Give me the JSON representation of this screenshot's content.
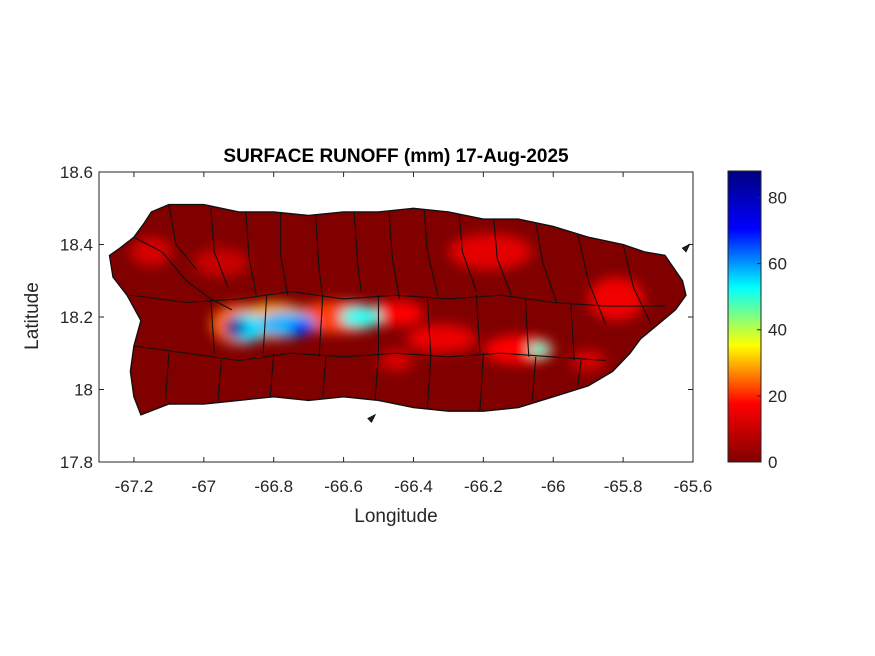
{
  "chart_data": {
    "type": "heatmap",
    "title": "SURFACE RUNOFF (mm) 17-Aug-2025",
    "xlabel": "Longitude",
    "ylabel": "Latitude",
    "xlim": [
      -67.3,
      -65.6
    ],
    "ylim": [
      17.8,
      18.6
    ],
    "x_ticks": [
      "-67.2",
      "-67",
      "-66.8",
      "-66.6",
      "-66.4",
      "-66.2",
      "-66",
      "-65.8",
      "-65.6"
    ],
    "y_ticks": [
      "18.6",
      "18.4",
      "18.2",
      "18",
      "17.8"
    ],
    "x_tick_values": [
      -67.2,
      -67.0,
      -66.8,
      -66.6,
      -66.4,
      -66.2,
      -66.0,
      -65.8,
      -65.6
    ],
    "y_tick_values": [
      18.6,
      18.4,
      18.2,
      18.0,
      17.8
    ],
    "colorbar": {
      "colormap": "jet",
      "range": [
        0,
        88
      ],
      "ticks": [
        "80",
        "60",
        "40",
        "20",
        "0"
      ],
      "tick_values": [
        80,
        60,
        40,
        20,
        0
      ]
    },
    "background_value_color": "#800000",
    "colormap_stops": [
      "#800000",
      "#ff0000",
      "#ffff00",
      "#00ffff",
      "#0000ff",
      "#000080"
    ],
    "island_outline": [
      [
        -67.27,
        18.37
      ],
      [
        -67.24,
        18.39
      ],
      [
        -67.2,
        18.42
      ],
      [
        -67.17,
        18.46
      ],
      [
        -67.15,
        18.49
      ],
      [
        -67.1,
        18.51
      ],
      [
        -67.0,
        18.51
      ],
      [
        -66.9,
        18.49
      ],
      [
        -66.8,
        18.49
      ],
      [
        -66.7,
        18.48
      ],
      [
        -66.6,
        18.49
      ],
      [
        -66.5,
        18.49
      ],
      [
        -66.4,
        18.5
      ],
      [
        -66.3,
        18.49
      ],
      [
        -66.2,
        18.47
      ],
      [
        -66.1,
        18.47
      ],
      [
        -66.0,
        18.45
      ],
      [
        -65.9,
        18.42
      ],
      [
        -65.8,
        18.4
      ],
      [
        -65.74,
        18.38
      ],
      [
        -65.68,
        18.37
      ],
      [
        -65.63,
        18.3
      ],
      [
        -65.62,
        18.26
      ],
      [
        -65.65,
        18.22
      ],
      [
        -65.7,
        18.18
      ],
      [
        -65.75,
        18.14
      ],
      [
        -65.78,
        18.1
      ],
      [
        -65.83,
        18.05
      ],
      [
        -65.9,
        18.01
      ],
      [
        -66.0,
        17.98
      ],
      [
        -66.1,
        17.95
      ],
      [
        -66.2,
        17.94
      ],
      [
        -66.3,
        17.94
      ],
      [
        -66.4,
        17.95
      ],
      [
        -66.5,
        17.97
      ],
      [
        -66.6,
        17.98
      ],
      [
        -66.7,
        17.97
      ],
      [
        -66.8,
        17.98
      ],
      [
        -66.9,
        17.97
      ],
      [
        -67.0,
        17.96
      ],
      [
        -67.1,
        17.96
      ],
      [
        -67.18,
        17.93
      ],
      [
        -67.2,
        17.98
      ],
      [
        -67.21,
        18.05
      ],
      [
        -67.2,
        18.12
      ],
      [
        -67.18,
        18.19
      ],
      [
        -67.22,
        18.26
      ],
      [
        -67.26,
        18.31
      ]
    ],
    "runoff_blobs": [
      {
        "lon": -66.9,
        "lat": 18.18,
        "rx": 0.08,
        "ry": 0.055,
        "value": 25
      },
      {
        "lon": -66.8,
        "lat": 18.19,
        "rx": 0.1,
        "ry": 0.05,
        "value": 30
      },
      {
        "lon": -66.62,
        "lat": 18.2,
        "rx": 0.12,
        "ry": 0.045,
        "value": 22
      },
      {
        "lon": -66.45,
        "lat": 18.21,
        "rx": 0.08,
        "ry": 0.035,
        "value": 18
      },
      {
        "lon": -66.88,
        "lat": 18.17,
        "rx": 0.06,
        "ry": 0.04,
        "value": 55
      },
      {
        "lon": -66.76,
        "lat": 18.18,
        "rx": 0.08,
        "ry": 0.035,
        "value": 58
      },
      {
        "lon": -66.55,
        "lat": 18.2,
        "rx": 0.06,
        "ry": 0.03,
        "value": 52
      },
      {
        "lon": -66.91,
        "lat": 18.17,
        "rx": 0.03,
        "ry": 0.025,
        "value": 85
      },
      {
        "lon": -66.72,
        "lat": 18.17,
        "rx": 0.03,
        "ry": 0.02,
        "value": 70
      },
      {
        "lon": -66.32,
        "lat": 18.14,
        "rx": 0.1,
        "ry": 0.04,
        "value": 15
      },
      {
        "lon": -66.1,
        "lat": 18.11,
        "rx": 0.1,
        "ry": 0.04,
        "value": 18
      },
      {
        "lon": -66.04,
        "lat": 18.11,
        "rx": 0.03,
        "ry": 0.02,
        "value": 50
      },
      {
        "lon": -66.18,
        "lat": 18.38,
        "rx": 0.12,
        "ry": 0.05,
        "value": 14
      },
      {
        "lon": -65.82,
        "lat": 18.25,
        "rx": 0.08,
        "ry": 0.06,
        "value": 16
      },
      {
        "lon": -67.15,
        "lat": 18.38,
        "rx": 0.06,
        "ry": 0.04,
        "value": 12
      },
      {
        "lon": -66.95,
        "lat": 18.35,
        "rx": 0.08,
        "ry": 0.04,
        "value": 10
      },
      {
        "lon": -66.45,
        "lat": 18.08,
        "rx": 0.05,
        "ry": 0.03,
        "value": 12
      },
      {
        "lon": -65.9,
        "lat": 18.08,
        "rx": 0.05,
        "ry": 0.03,
        "value": 12
      }
    ],
    "municipality_lines": [
      [
        [
          -67.2,
          18.42
        ],
        [
          -67.12,
          18.38
        ],
        [
          -67.05,
          18.3
        ],
        [
          -66.98,
          18.25
        ],
        [
          -66.92,
          18.22
        ]
      ],
      [
        [
          -67.1,
          18.51
        ],
        [
          -67.08,
          18.4
        ],
        [
          -67.02,
          18.33
        ]
      ],
      [
        [
          -66.98,
          18.5
        ],
        [
          -66.97,
          18.38
        ],
        [
          -66.93,
          18.28
        ]
      ],
      [
        [
          -66.88,
          18.49
        ],
        [
          -66.87,
          18.36
        ],
        [
          -66.85,
          18.26
        ]
      ],
      [
        [
          -66.78,
          18.49
        ],
        [
          -66.78,
          18.37
        ],
        [
          -66.76,
          18.26
        ]
      ],
      [
        [
          -66.68,
          18.48
        ],
        [
          -66.67,
          18.33
        ],
        [
          -66.66,
          18.25
        ]
      ],
      [
        [
          -66.57,
          18.49
        ],
        [
          -66.56,
          18.35
        ],
        [
          -66.55,
          18.27
        ]
      ],
      [
        [
          -66.47,
          18.49
        ],
        [
          -66.46,
          18.36
        ],
        [
          -66.44,
          18.25
        ]
      ],
      [
        [
          -66.37,
          18.5
        ],
        [
          -66.36,
          18.38
        ],
        [
          -66.33,
          18.26
        ]
      ],
      [
        [
          -66.27,
          18.49
        ],
        [
          -66.26,
          18.38
        ],
        [
          -66.22,
          18.27
        ]
      ],
      [
        [
          -66.17,
          18.47
        ],
        [
          -66.16,
          18.36
        ],
        [
          -66.12,
          18.26
        ]
      ],
      [
        [
          -66.05,
          18.46
        ],
        [
          -66.03,
          18.35
        ],
        [
          -65.99,
          18.24
        ]
      ],
      [
        [
          -65.93,
          18.43
        ],
        [
          -65.9,
          18.3
        ],
        [
          -65.85,
          18.18
        ]
      ],
      [
        [
          -65.8,
          18.4
        ],
        [
          -65.77,
          18.28
        ],
        [
          -65.72,
          18.18
        ]
      ],
      [
        [
          -67.21,
          18.26
        ],
        [
          -67.05,
          18.24
        ],
        [
          -66.9,
          18.25
        ],
        [
          -66.75,
          18.27
        ],
        [
          -66.6,
          18.25
        ],
        [
          -66.45,
          18.26
        ],
        [
          -66.3,
          18.25
        ],
        [
          -66.15,
          18.26
        ],
        [
          -66.0,
          18.24
        ],
        [
          -65.85,
          18.23
        ],
        [
          -65.68,
          18.23
        ]
      ],
      [
        [
          -67.2,
          18.12
        ],
        [
          -67.05,
          18.1
        ],
        [
          -66.9,
          18.08
        ],
        [
          -66.75,
          18.1
        ],
        [
          -66.6,
          18.09
        ],
        [
          -66.45,
          18.1
        ],
        [
          -66.3,
          18.09
        ],
        [
          -66.15,
          18.1
        ],
        [
          -66.0,
          18.09
        ],
        [
          -65.85,
          18.08
        ]
      ],
      [
        [
          -67.1,
          18.1
        ],
        [
          -67.11,
          17.97
        ]
      ],
      [
        [
          -66.95,
          18.08
        ],
        [
          -66.96,
          17.97
        ]
      ],
      [
        [
          -66.8,
          18.1
        ],
        [
          -66.81,
          17.98
        ]
      ],
      [
        [
          -66.65,
          18.09
        ],
        [
          -66.66,
          17.98
        ]
      ],
      [
        [
          -66.5,
          18.1
        ],
        [
          -66.51,
          17.97
        ]
      ],
      [
        [
          -66.35,
          18.09
        ],
        [
          -66.36,
          17.95
        ]
      ],
      [
        [
          -66.2,
          18.1
        ],
        [
          -66.21,
          17.94
        ]
      ],
      [
        [
          -66.05,
          18.09
        ],
        [
          -66.06,
          17.97
        ]
      ],
      [
        [
          -65.92,
          18.08
        ],
        [
          -65.93,
          18.01
        ]
      ],
      [
        [
          -66.98,
          18.25
        ],
        [
          -66.97,
          18.1
        ]
      ],
      [
        [
          -66.82,
          18.26
        ],
        [
          -66.83,
          18.1
        ]
      ],
      [
        [
          -66.66,
          18.25
        ],
        [
          -66.67,
          18.09
        ]
      ],
      [
        [
          -66.5,
          18.26
        ],
        [
          -66.5,
          18.1
        ]
      ],
      [
        [
          -66.36,
          18.25
        ],
        [
          -66.35,
          18.09
        ]
      ],
      [
        [
          -66.22,
          18.26
        ],
        [
          -66.21,
          18.1
        ]
      ],
      [
        [
          -66.08,
          18.25
        ],
        [
          -66.07,
          18.09
        ]
      ],
      [
        [
          -65.95,
          18.24
        ],
        [
          -65.94,
          18.08
        ]
      ]
    ],
    "small_islands": [
      [
        [
          -66.53,
          17.92
        ],
        [
          -66.51,
          17.93
        ],
        [
          -66.52,
          17.91
        ]
      ],
      [
        [
          -65.63,
          18.39
        ],
        [
          -65.61,
          18.4
        ],
        [
          -65.62,
          18.38
        ]
      ]
    ]
  }
}
